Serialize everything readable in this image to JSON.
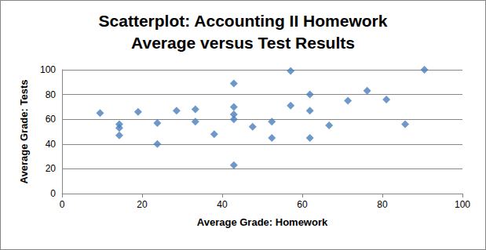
{
  "chart_data": {
    "type": "scatter",
    "title": "Scatterplot: Accounting II Homework\nAverage versus Test Results",
    "x_label": "Average Grade: Homework",
    "y_label": "Average Grade: Tests",
    "x": [
      9.5,
      14.3,
      14.3,
      14.3,
      19,
      23.8,
      23.8,
      28.6,
      33.3,
      33.3,
      38,
      42.9,
      42.9,
      42.9,
      42.9,
      42.9,
      47.6,
      52.4,
      52.4,
      57.1,
      57.1,
      61.9,
      61.9,
      61.9,
      66.7,
      71.4,
      76.2,
      81,
      85.7,
      90.5
    ],
    "values": [
      65,
      56,
      53,
      47,
      66,
      57,
      40,
      67,
      68,
      58,
      48,
      89,
      70,
      64,
      60,
      23,
      54,
      58,
      45,
      99,
      71,
      80,
      67,
      45,
      55,
      75,
      83,
      76,
      56,
      100
    ],
    "color": "#4a7ebb",
    "marker": "diamond",
    "xlim": [
      0,
      100
    ],
    "xticks": [
      0,
      20,
      40,
      60,
      80,
      100
    ],
    "ylim": [
      0,
      100
    ],
    "yticks": [
      0,
      20,
      40,
      60,
      80,
      100
    ],
    "grid": true
  }
}
